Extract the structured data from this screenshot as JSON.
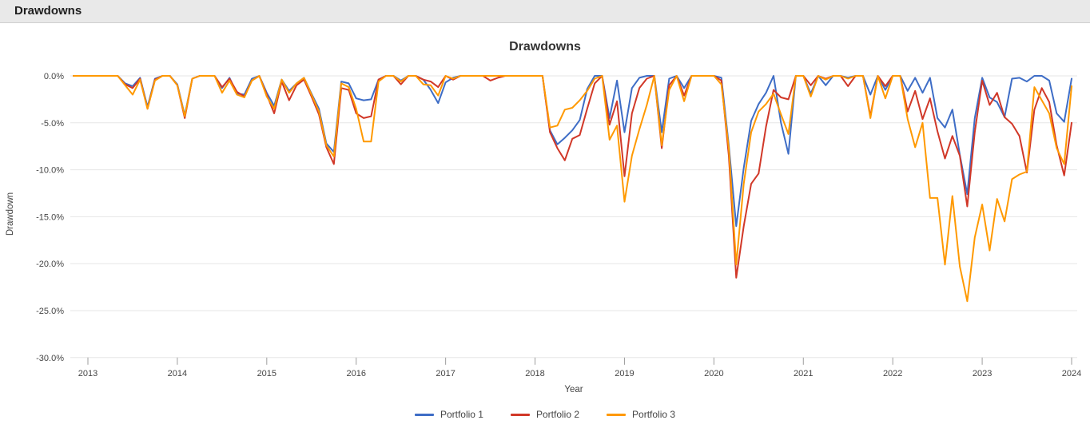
{
  "window": {
    "header_title": "Drawdowns"
  },
  "chart_data": {
    "type": "line",
    "title": "Drawdowns",
    "xlabel": "Year",
    "ylabel": "Drawdown",
    "grid": true,
    "legend_position": "bottom",
    "ylim": [
      -30,
      0
    ],
    "y_tick_labels": [
      "0.0%",
      "-5.0%",
      "-10.0%",
      "-15.0%",
      "-20.0%",
      "-25.0%",
      "-30.0%"
    ],
    "x_tick_labels": [
      "2013",
      "2014",
      "2015",
      "2016",
      "2017",
      "2018",
      "2019",
      "2020",
      "2021",
      "2022",
      "2023",
      "2024"
    ],
    "x_unit": "month",
    "x_start_label": "Dec 2012",
    "x_points_per_tick": 12,
    "series": [
      {
        "name": "Portfolio 1",
        "color": "#3e6dc6",
        "values": [
          0,
          0,
          0,
          0,
          0,
          -0.8,
          -1.1,
          -0.2,
          -3.3,
          -0.3,
          0,
          0,
          -0.9,
          -4.2,
          -0.3,
          0,
          0,
          0,
          -1.3,
          -0.2,
          -1.9,
          -2.0,
          -0.3,
          0,
          -1.8,
          -3.2,
          -0.4,
          -1.6,
          -0.8,
          -0.2,
          -1.9,
          -3.5,
          -7.2,
          -8.1,
          -0.6,
          -0.8,
          -2.4,
          -2.6,
          -2.5,
          -0.4,
          0,
          0,
          -0.5,
          0,
          0,
          -0.4,
          -1.5,
          -2.9,
          -0.7,
          -0.2,
          0,
          0,
          0,
          0,
          0,
          0,
          0,
          0,
          0,
          0,
          0,
          0,
          -5.8,
          -7.3,
          -6.6,
          -5.8,
          -4.7,
          -1.4,
          0,
          0,
          -4.5,
          -0.5,
          -6.0,
          -1.3,
          -0.2,
          0,
          0,
          -6.0,
          -0.3,
          0,
          -1.3,
          0,
          0,
          0,
          0,
          -0.2,
          -7.4,
          -16.0,
          -9.8,
          -4.8,
          -3.0,
          -1.8,
          0,
          -5.0,
          -8.3,
          0,
          0,
          -1.9,
          0,
          -1.0,
          0,
          0,
          -0.2,
          0,
          0,
          -2.0,
          0,
          -1.5,
          0,
          0,
          -1.6,
          -0.2,
          -1.8,
          -0.2,
          -4.5,
          -5.5,
          -3.6,
          -8.4,
          -12.6,
          -4.5,
          -0.2,
          -2.3,
          -2.8,
          -4.4,
          -0.3,
          -0.2,
          -0.6,
          0,
          0,
          -0.5,
          -4.0,
          -4.9,
          -0.3
        ]
      },
      {
        "name": "Portfolio 2",
        "color": "#d13828",
        "values": [
          0,
          0,
          0,
          0,
          0,
          -0.9,
          -1.3,
          -0.3,
          -3.5,
          -0.4,
          0,
          0,
          -1.0,
          -4.5,
          -0.3,
          0,
          0,
          0,
          -1.2,
          -0.3,
          -1.7,
          -2.2,
          -0.5,
          0,
          -2.0,
          -4.0,
          -0.6,
          -2.6,
          -1.0,
          -0.4,
          -2.2,
          -4.1,
          -7.6,
          -9.4,
          -1.3,
          -1.5,
          -4.0,
          -4.5,
          -4.3,
          -0.4,
          0,
          0,
          -0.9,
          0,
          0,
          -0.4,
          -0.6,
          -1.2,
          0,
          -0.4,
          0,
          0,
          0,
          0,
          -0.5,
          -0.2,
          0,
          0,
          0,
          0,
          0,
          0,
          -6.0,
          -7.7,
          -9.0,
          -6.7,
          -6.3,
          -3.5,
          -0.8,
          0,
          -5.2,
          -2.7,
          -10.7,
          -4.0,
          -1.3,
          -0.3,
          0,
          -7.7,
          -1.0,
          0,
          -2.1,
          0,
          0,
          0,
          0,
          -0.5,
          -8.5,
          -21.5,
          -16.0,
          -11.5,
          -10.4,
          -5.4,
          -1.5,
          -2.3,
          -2.5,
          0,
          0,
          -1.0,
          0,
          -0.3,
          0,
          0,
          -1.1,
          0,
          0,
          -4.3,
          0,
          -1.1,
          0,
          0,
          -3.8,
          -1.6,
          -4.6,
          -2.4,
          -5.9,
          -8.8,
          -6.4,
          -8.5,
          -13.9,
          -6.0,
          -0.5,
          -3.1,
          -1.8,
          -4.4,
          -5.1,
          -6.4,
          -10.3,
          -3.6,
          -1.3,
          -2.8,
          -7.4,
          -10.6,
          -5.0
        ]
      },
      {
        "name": "Portfolio 3",
        "color": "#ff9900",
        "values": [
          0,
          0,
          0,
          0,
          0,
          -1.0,
          -2.0,
          -0.4,
          -3.5,
          -0.5,
          0,
          0,
          -1.0,
          -4.3,
          -0.3,
          0,
          0,
          0,
          -1.8,
          -0.5,
          -2.0,
          -2.3,
          -0.5,
          0,
          -2.2,
          -3.5,
          -0.4,
          -1.8,
          -0.8,
          -0.2,
          -2.0,
          -3.8,
          -7.4,
          -8.6,
          -0.8,
          -1.2,
          -3.5,
          -7.0,
          -7.0,
          -0.6,
          0,
          0,
          -0.6,
          0,
          0,
          -0.9,
          -1.0,
          -2.1,
          0,
          -0.3,
          0,
          0,
          0,
          0,
          0,
          0,
          0,
          0,
          0,
          0,
          0,
          0,
          -5.5,
          -5.3,
          -3.6,
          -3.4,
          -2.6,
          -1.6,
          -0.3,
          0,
          -6.8,
          -5.3,
          -13.4,
          -8.5,
          -5.7,
          -3.1,
          0,
          -7.4,
          -1.5,
          0,
          -2.7,
          0,
          0,
          0,
          0,
          -0.9,
          -7.7,
          -20.1,
          -11.5,
          -6.0,
          -3.8,
          -3.0,
          -1.9,
          -4.1,
          -6.2,
          0,
          0,
          -2.2,
          0,
          -0.4,
          0,
          0,
          -0.3,
          0,
          0,
          -4.5,
          0,
          -2.4,
          0,
          0,
          -4.6,
          -7.6,
          -5.0,
          -13.0,
          -13.0,
          -20.1,
          -12.8,
          -20.3,
          -24.0,
          -17.2,
          -13.7,
          -18.6,
          -13.1,
          -15.5,
          -11.0,
          -10.5,
          -10.2,
          -1.2,
          -2.6,
          -4.0,
          -7.7,
          -9.4,
          -1.1
        ]
      }
    ]
  }
}
